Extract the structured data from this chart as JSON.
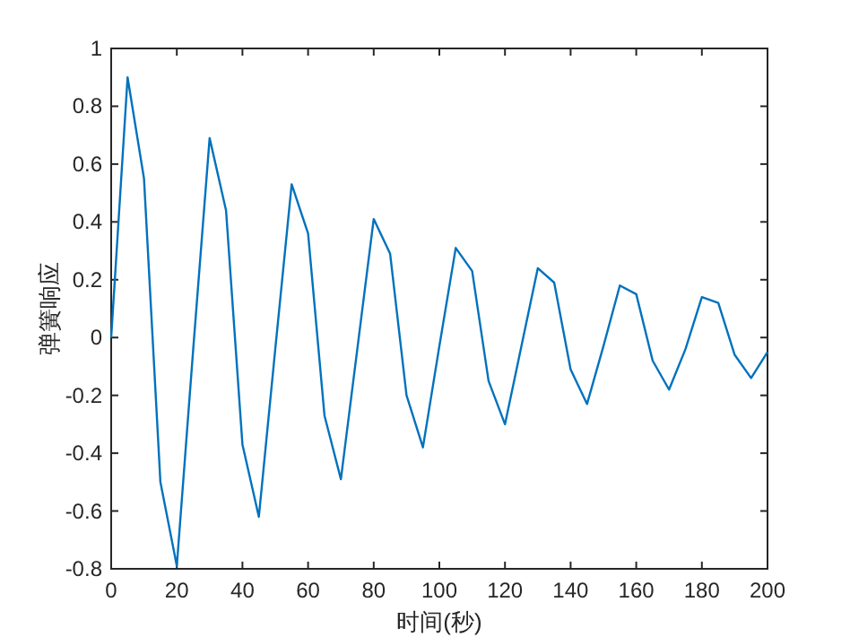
{
  "chart_data": {
    "type": "line",
    "xlabel": "时间(秒)",
    "ylabel": "弹簧响应",
    "x": [
      0,
      5,
      10,
      15,
      20,
      25,
      30,
      35,
      40,
      45,
      50,
      55,
      60,
      65,
      70,
      75,
      80,
      85,
      90,
      95,
      100,
      105,
      110,
      115,
      120,
      125,
      130,
      135,
      140,
      145,
      150,
      155,
      160,
      165,
      170,
      175,
      180,
      185,
      190,
      195,
      200
    ],
    "series": [
      {
        "color": "#0072bd",
        "values": [
          0,
          0.9,
          0.55,
          -0.5,
          -0.79,
          -0.04,
          0.69,
          0.44,
          -0.37,
          -0.62,
          -0.04,
          0.53,
          0.36,
          -0.27,
          -0.49,
          -0.04,
          0.41,
          0.29,
          -0.2,
          -0.38,
          -0.03,
          0.31,
          0.23,
          -0.15,
          -0.3,
          -0.03,
          0.24,
          0.19,
          -0.11,
          -0.23,
          -0.03,
          0.18,
          0.15,
          -0.08,
          -0.18,
          -0.04,
          0.14,
          0.12,
          -0.06,
          -0.14,
          -0.05
        ]
      }
    ],
    "xlim": [
      0,
      200
    ],
    "ylim": [
      -0.8,
      1
    ],
    "xticks": [
      0,
      20,
      40,
      60,
      80,
      100,
      120,
      140,
      160,
      180,
      200
    ],
    "yticks": [
      -0.8,
      -0.6,
      -0.4,
      -0.2,
      0,
      0.2,
      0.4,
      0.6,
      0.8,
      1
    ],
    "grid": false
  }
}
